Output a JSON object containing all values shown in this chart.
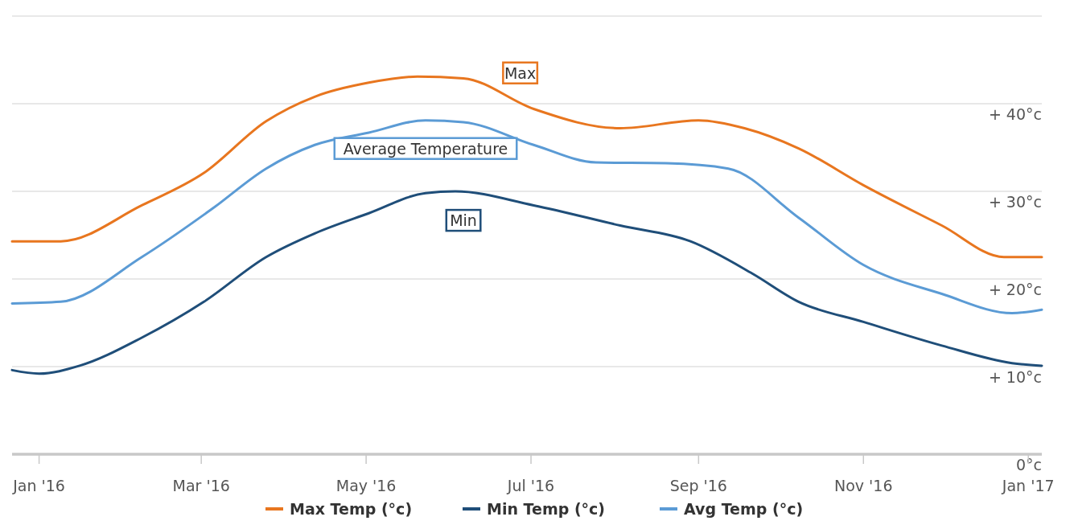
{
  "chart_data": {
    "type": "line",
    "xlim": [
      "2015-12-22",
      "2017-01-06"
    ],
    "xticks": [
      {
        "value": "2016-01-01",
        "label": "Jan '16"
      },
      {
        "value": "2016-03-01",
        "label": "Mar '16"
      },
      {
        "value": "2016-05-01",
        "label": "May '16"
      },
      {
        "value": "2016-07-01",
        "label": "Jul '16"
      },
      {
        "value": "2016-09-01",
        "label": "Sep '16"
      },
      {
        "value": "2016-11-01",
        "label": "Nov '16"
      },
      {
        "value": "2017-01-01",
        "label": "Jan '17"
      }
    ],
    "ylim": [
      0,
      50
    ],
    "yticks": [
      {
        "value": 0,
        "label": "0°c"
      },
      {
        "value": 10,
        "label": "+ 10°c"
      },
      {
        "value": 20,
        "label": "+ 20°c"
      },
      {
        "value": 30,
        "label": "+ 30°c"
      },
      {
        "value": 40,
        "label": "+ 40°c"
      },
      {
        "value": 50,
        "label": null
      }
    ],
    "grid": "y",
    "legend": "bottom",
    "line_style": "solid",
    "marker": "none",
    "series": [
      {
        "name": "Max Temp (°c)",
        "color": "#e8761f",
        "x": [
          "2015-12-22",
          "2016-01-09",
          "2016-02-08",
          "2016-03-02",
          "2016-03-25",
          "2016-04-12",
          "2016-05-02",
          "2016-05-20",
          "2016-06-06",
          "2016-07-02",
          "2016-08-03",
          "2016-09-01",
          "2016-09-18",
          "2016-10-08",
          "2016-11-01",
          "2016-11-30",
          "2016-12-23",
          "2017-01-06"
        ],
        "values": [
          24.3,
          24.3,
          28.4,
          32.1,
          38,
          40.8,
          42.4,
          43.1,
          42.9,
          39.4,
          37.2,
          38.1,
          37.2,
          34.9,
          30.7,
          26.1,
          22.5,
          22.5
        ]
      },
      {
        "name": "Min Temp (°c)",
        "color": "#1f4e79",
        "x": [
          "2015-12-22",
          "2016-01-01",
          "2016-01-16",
          "2016-02-08",
          "2016-03-02",
          "2016-03-25",
          "2016-04-12",
          "2016-05-02",
          "2016-05-23",
          "2016-06-03",
          "2016-07-02",
          "2016-08-03",
          "2016-08-29",
          "2016-09-21",
          "2016-10-08",
          "2016-11-01",
          "2016-11-30",
          "2016-12-26",
          "2017-01-06"
        ],
        "values": [
          9.6,
          9.2,
          10.1,
          13.3,
          17.4,
          22.5,
          25.2,
          27.5,
          29.8,
          30,
          28.4,
          26.1,
          24.3,
          20.6,
          17.4,
          15.1,
          12.4,
          10.4,
          10.1
        ]
      },
      {
        "name": "Avg Temp (°c)",
        "color": "#5b9bd5",
        "x": [
          "2015-12-22",
          "2016-01-09",
          "2016-02-08",
          "2016-03-05",
          "2016-03-25",
          "2016-04-12",
          "2016-05-02",
          "2016-05-23",
          "2016-06-06",
          "2016-07-02",
          "2016-07-25",
          "2016-08-20",
          "2016-09-12",
          "2016-10-08",
          "2016-11-01",
          "2016-11-30",
          "2016-12-26",
          "2017-01-06"
        ],
        "values": [
          17.2,
          17.4,
          22.5,
          28,
          32.6,
          35.3,
          36.7,
          38.1,
          37.9,
          35.3,
          33.3,
          33.2,
          32.6,
          27,
          21.6,
          18.3,
          16.1,
          16.5
        ]
      }
    ],
    "annotations": [
      {
        "text": "Max",
        "x": "2016-06-27",
        "y": 40.3
      },
      {
        "text": "Min",
        "x": "2016-06-06",
        "y": 29.9
      },
      {
        "text": "Average Temperature",
        "x": "2016-05-23",
        "y": 38.1
      }
    ]
  }
}
